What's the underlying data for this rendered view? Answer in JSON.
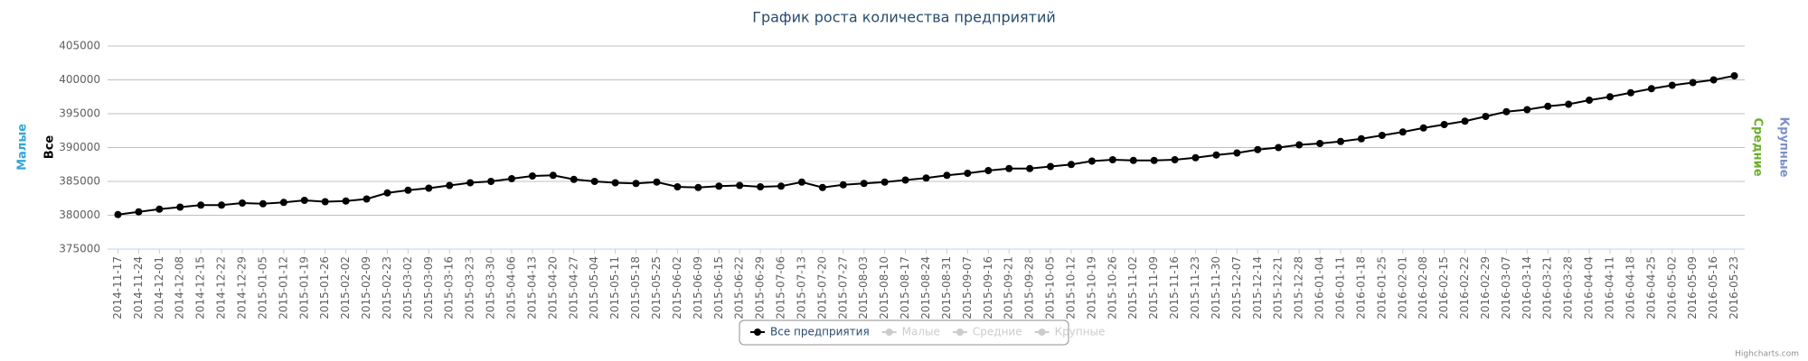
{
  "chart_data": {
    "type": "line",
    "title": "График роста количества предприятий",
    "axis_titles": [
      {
        "title": "Малые",
        "color": "#31a6d6",
        "side": "left"
      },
      {
        "title": "Все",
        "color": "#000000",
        "side": "left"
      },
      {
        "title": "Средние",
        "color": "#6aae2a",
        "side": "right"
      },
      {
        "title": "Крупные",
        "color": "#7c90c8",
        "side": "right"
      }
    ],
    "categories": [
      "2014-11-17",
      "2014-11-24",
      "2014-12-01",
      "2014-12-08",
      "2014-12-15",
      "2014-12-22",
      "2014-12-29",
      "2015-01-05",
      "2015-01-12",
      "2015-01-19",
      "2015-01-26",
      "2015-02-02",
      "2015-02-09",
      "2015-02-23",
      "2015-03-02",
      "2015-03-09",
      "2015-03-16",
      "2015-03-23",
      "2015-03-30",
      "2015-04-06",
      "2015-04-13",
      "2015-04-20",
      "2015-04-27",
      "2015-05-04",
      "2015-05-11",
      "2015-05-18",
      "2015-05-25",
      "2015-06-02",
      "2015-06-09",
      "2015-06-15",
      "2015-06-22",
      "2015-06-29",
      "2015-07-06",
      "2015-07-13",
      "2015-07-20",
      "2015-07-27",
      "2015-08-03",
      "2015-08-10",
      "2015-08-17",
      "2015-08-24",
      "2015-08-31",
      "2015-09-07",
      "2015-09-16",
      "2015-09-21",
      "2015-09-28",
      "2015-10-05",
      "2015-10-12",
      "2015-10-19",
      "2015-10-26",
      "2015-11-02",
      "2015-11-09",
      "2015-11-16",
      "2015-11-23",
      "2015-11-30",
      "2015-12-07",
      "2015-12-14",
      "2015-12-21",
      "2015-12-28",
      "2016-01-04",
      "2016-01-11",
      "2016-01-18",
      "2016-01-25",
      "2016-02-01",
      "2016-02-08",
      "2016-02-15",
      "2016-02-22",
      "2016-02-29",
      "2016-03-07",
      "2016-03-14",
      "2016-03-21",
      "2016-03-28",
      "2016-04-04",
      "2016-04-11",
      "2016-04-18",
      "2016-04-25",
      "2016-05-02",
      "2016-05-09",
      "2016-05-16",
      "2016-05-23"
    ],
    "series": [
      {
        "name": "Все предприятия",
        "color": "#000000",
        "visible": true,
        "values": [
          380100,
          380500,
          380900,
          381200,
          381500,
          381500,
          381800,
          381700,
          381900,
          382200,
          382000,
          382100,
          382400,
          383300,
          383700,
          384000,
          384400,
          384800,
          385000,
          385400,
          385800,
          385900,
          385300,
          385000,
          384800,
          384700,
          384900,
          384200,
          384100,
          384300,
          384400,
          384200,
          384300,
          384900,
          384100,
          384500,
          384700,
          384900,
          385200,
          385500,
          385900,
          386200,
          386600,
          386900,
          386900,
          387200,
          387500,
          388000,
          388200,
          388100,
          388100,
          388200,
          388500,
          388900,
          389200,
          389700,
          390000,
          390400,
          390600,
          390900,
          391300,
          391800,
          392300,
          392900,
          393400,
          393900,
          394600,
          395300,
          395600,
          396100,
          396400,
          397000,
          397500,
          398100,
          398700,
          399200,
          399600,
          400000,
          400600
        ]
      },
      {
        "name": "Малые",
        "color": "#cccccc",
        "visible": false
      },
      {
        "name": "Средние",
        "color": "#cccccc",
        "visible": false
      },
      {
        "name": "Крупные",
        "color": "#cccccc",
        "visible": false
      }
    ],
    "ylim": [
      375000,
      405000
    ],
    "yticks": [
      375000,
      380000,
      385000,
      390000,
      395000,
      400000,
      405000
    ],
    "grid": true,
    "credits": "Highcharts.com"
  }
}
